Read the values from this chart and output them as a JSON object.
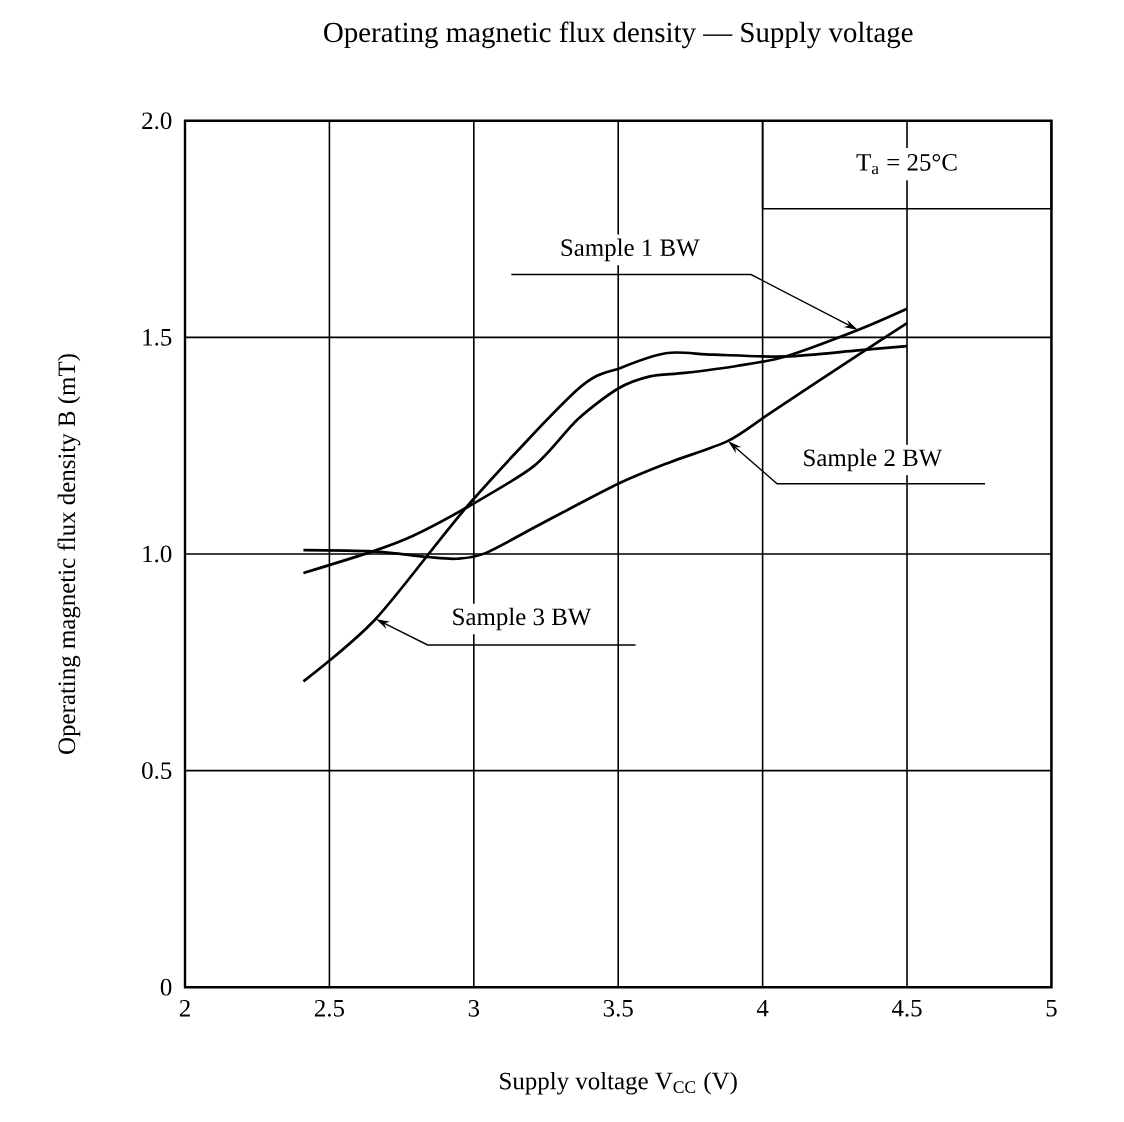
{
  "chart_data": {
    "type": "line",
    "title": "Operating magnetic flux density — Supply voltage",
    "xlabel": "Supply voltage  V$_{CC}$  (V)",
    "ylabel": "Operating magnetic flux density  B  (mT)",
    "xlim": [
      2,
      5
    ],
    "ylim": [
      0,
      2.0
    ],
    "xticks": [
      2,
      2.5,
      3,
      3.5,
      4,
      4.5,
      5
    ],
    "yticks": [
      0,
      0.5,
      {
        "value": 1.0,
        "label": "1.0"
      },
      1.5,
      {
        "value": 2.0,
        "label": "2.0"
      }
    ],
    "grid": true,
    "marker": "none",
    "line_style": "solid",
    "series": [
      {
        "color": "#000000",
        "x": [
          2.41,
          2.65,
          2.79,
          2.99,
          3.21,
          3.36,
          3.5,
          3.61,
          3.73,
          3.91,
          4.08,
          4.33,
          4.5
        ],
        "values": [
          0.956,
          1.006,
          1.042,
          1.113,
          1.204,
          1.311,
          1.382,
          1.41,
          1.418,
          1.434,
          1.456,
          1.517,
          1.566
        ]
      },
      {
        "color": "#000000",
        "x": [
          2.41,
          2.65,
          2.84,
          2.94,
          3.04,
          3.24,
          3.5,
          3.68,
          3.88,
          4.03,
          4.33,
          4.5
        ],
        "values": [
          1.009,
          1.006,
          0.993,
          0.989,
          1.002,
          1.072,
          1.162,
          1.212,
          1.261,
          1.327,
          1.459,
          1.533
        ]
      },
      {
        "color": "#000000",
        "x": [
          2.41,
          2.66,
          2.99,
          3.36,
          3.51,
          3.67,
          3.83,
          4.08,
          4.33,
          4.5
        ],
        "values": [
          0.706,
          0.85,
          1.12,
          1.38,
          1.43,
          1.464,
          1.46,
          1.456,
          1.47,
          1.48
        ]
      }
    ],
    "annotations": [
      "T$_{a}$ = 25°C",
      {
        "text": "Sample 1  BW",
        "x": 4.33,
        "y": 1.517
      },
      {
        "text": "Sample 2  BW",
        "x": 3.88,
        "y": 1.261
      },
      {
        "text": "Sample 3  BW",
        "x": 2.66,
        "y": 0.85
      }
    ]
  }
}
